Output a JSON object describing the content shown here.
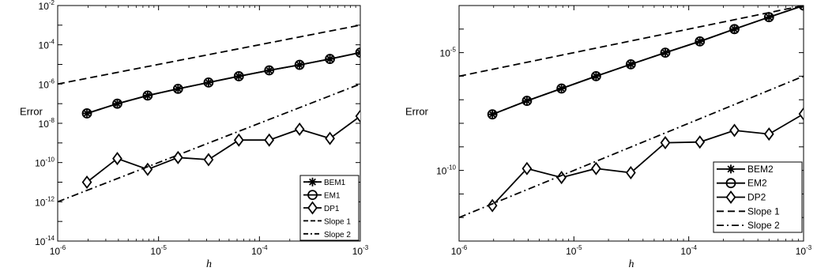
{
  "chart_data": [
    {
      "type": "line",
      "xscale": "log",
      "yscale": "log",
      "xlim": [
        1e-06,
        0.001
      ],
      "ylim": [
        1e-14,
        0.01
      ],
      "xlabel": "h",
      "ylabel": "Error",
      "x_ticks": [
        {
          "value": 1e-06,
          "base": "10",
          "exp": "-6"
        },
        {
          "value": 1e-05,
          "base": "10",
          "exp": "-5"
        },
        {
          "value": 0.0001,
          "base": "10",
          "exp": "-4"
        },
        {
          "value": 0.001,
          "base": "10",
          "exp": "-3"
        }
      ],
      "y_ticks": [
        {
          "value": 1e-14,
          "base": "10",
          "exp": "-14"
        },
        {
          "value": 1e-12,
          "base": "10",
          "exp": "-12"
        },
        {
          "value": 1e-10,
          "base": "10",
          "exp": "-10"
        },
        {
          "value": 1e-08,
          "base": "10",
          "exp": "-8"
        },
        {
          "value": 1e-06,
          "base": "10",
          "exp": "-6"
        },
        {
          "value": 0.0001,
          "base": "10",
          "exp": "-4"
        },
        {
          "value": 0.01,
          "base": "10",
          "exp": "-2"
        }
      ],
      "legend_position": "bottom-right",
      "series": [
        {
          "name": "BEM1",
          "marker": "asterisk",
          "line": "solid",
          "x": [
            1.95e-06,
            3.9e-06,
            7.8e-06,
            1.56e-05,
            3.13e-05,
            6.25e-05,
            0.000125,
            0.00025,
            0.0005,
            0.001
          ],
          "y": [
            3.2e-08,
            1e-07,
            2.6e-07,
            5.7e-07,
            1.2e-06,
            2.5e-06,
            5e-06,
            9.5e-06,
            1.9e-05,
            4e-05
          ]
        },
        {
          "name": "EM1",
          "marker": "circle",
          "line": "solid",
          "x": [
            1.95e-06,
            3.9e-06,
            7.8e-06,
            1.56e-05,
            3.13e-05,
            6.25e-05,
            0.000125,
            0.00025,
            0.0005,
            0.001
          ],
          "y": [
            3.2e-08,
            1e-07,
            2.6e-07,
            5.7e-07,
            1.2e-06,
            2.5e-06,
            5e-06,
            9.5e-06,
            1.9e-05,
            4e-05
          ]
        },
        {
          "name": "DP1",
          "marker": "diamond",
          "line": "solid",
          "x": [
            1.95e-06,
            3.9e-06,
            7.8e-06,
            1.56e-05,
            3.13e-05,
            6.25e-05,
            0.000125,
            0.00025,
            0.0005,
            0.001
          ],
          "y": [
            1e-11,
            1.6e-10,
            4.5e-11,
            1.8e-10,
            1.4e-10,
            1.4e-09,
            1.4e-09,
            5e-09,
            1.7e-09,
            2.3e-08
          ]
        },
        {
          "name": "Slope 1",
          "marker": "none",
          "line": "dashed",
          "x": [
            1e-06,
            0.001
          ],
          "y": [
            1e-06,
            0.001
          ]
        },
        {
          "name": "Slope 2",
          "marker": "none",
          "line": "dashdot",
          "x": [
            1e-06,
            0.001
          ],
          "y": [
            1e-12,
            1e-06
          ]
        }
      ]
    },
    {
      "type": "line",
      "xscale": "log",
      "yscale": "log",
      "xlim": [
        1e-06,
        0.001
      ],
      "ylim": [
        1e-13,
        0.001
      ],
      "xlabel": "h",
      "ylabel": "Error",
      "x_ticks": [
        {
          "value": 1e-06,
          "base": "10",
          "exp": "-6"
        },
        {
          "value": 1e-05,
          "base": "10",
          "exp": "-5"
        },
        {
          "value": 0.0001,
          "base": "10",
          "exp": "-4"
        },
        {
          "value": 0.001,
          "base": "10",
          "exp": "-3"
        }
      ],
      "y_ticks": [
        {
          "value": 1e-10,
          "base": "10",
          "exp": "-10"
        },
        {
          "value": 1e-05,
          "base": "10",
          "exp": "-5"
        }
      ],
      "legend_position": "bottom-right",
      "series": [
        {
          "name": "BEM2",
          "marker": "asterisk",
          "line": "solid",
          "x": [
            1.95e-06,
            3.9e-06,
            7.8e-06,
            1.56e-05,
            3.13e-05,
            6.25e-05,
            0.000125,
            0.00025,
            0.0005,
            0.001
          ],
          "y": [
            2.4e-08,
            9e-08,
            3e-07,
            1e-06,
            3.2e-06,
            1e-05,
            3e-05,
            0.0001,
            0.00032,
            0.001
          ]
        },
        {
          "name": "EM2",
          "marker": "circle",
          "line": "solid",
          "x": [
            1.95e-06,
            3.9e-06,
            7.8e-06,
            1.56e-05,
            3.13e-05,
            6.25e-05,
            0.000125,
            0.00025,
            0.0005,
            0.001
          ],
          "y": [
            2.4e-08,
            9e-08,
            3e-07,
            1e-06,
            3.2e-06,
            1e-05,
            3e-05,
            0.0001,
            0.00032,
            0.001
          ]
        },
        {
          "name": "DP2",
          "marker": "diamond",
          "line": "solid",
          "x": [
            1.95e-06,
            3.9e-06,
            7.8e-06,
            1.56e-05,
            3.13e-05,
            6.25e-05,
            0.000125,
            0.00025,
            0.0005,
            0.001
          ],
          "y": [
            3.2e-12,
            1.2e-10,
            5e-11,
            1.2e-10,
            8e-11,
            1.5e-09,
            1.6e-09,
            5e-09,
            3.5e-09,
            2.5e-08
          ]
        },
        {
          "name": "Slope 1",
          "marker": "none",
          "line": "dashed",
          "x": [
            1e-06,
            0.001
          ],
          "y": [
            1e-06,
            0.001
          ]
        },
        {
          "name": "Slope 2",
          "marker": "none",
          "line": "dashdot",
          "x": [
            1e-06,
            0.001
          ],
          "y": [
            1e-12,
            1e-06
          ]
        }
      ]
    }
  ]
}
